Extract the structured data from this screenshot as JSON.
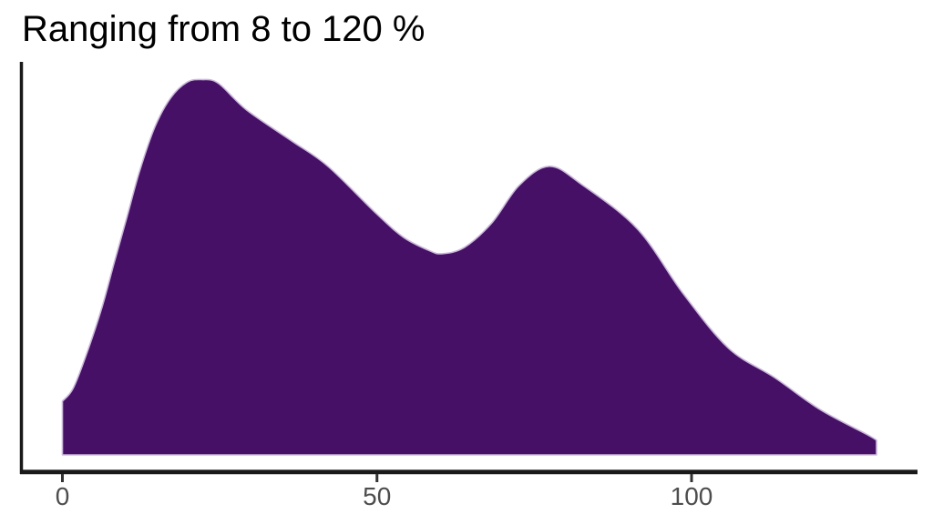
{
  "chart_data": {
    "type": "area",
    "subtype": "density",
    "title": "Ranging from 8 to 120 %",
    "xlabel": "",
    "ylabel": "",
    "x_ticks": [
      0,
      50,
      100
    ],
    "x_axis_range": [
      0,
      136
    ],
    "grid": false,
    "legend": "none",
    "peaks": [
      {
        "x": 22,
        "rel_height": 1.0
      },
      {
        "x": 77.5,
        "rel_height": 0.77
      }
    ],
    "valley": {
      "x": 60,
      "rel_height": 0.54
    },
    "curve": [
      {
        "x": 0.0,
        "y": 0.143
      },
      {
        "x": 1.7,
        "y": 0.177
      },
      {
        "x": 3.8,
        "y": 0.267
      },
      {
        "x": 6.2,
        "y": 0.388
      },
      {
        "x": 8.2,
        "y": 0.51
      },
      {
        "x": 10.2,
        "y": 0.63
      },
      {
        "x": 12.2,
        "y": 0.752
      },
      {
        "x": 14.7,
        "y": 0.874
      },
      {
        "x": 17.2,
        "y": 0.951
      },
      {
        "x": 19.8,
        "y": 0.993
      },
      {
        "x": 22.2,
        "y": 1.0
      },
      {
        "x": 24.8,
        "y": 0.99
      },
      {
        "x": 29.2,
        "y": 0.92
      },
      {
        "x": 36.4,
        "y": 0.837
      },
      {
        "x": 42.2,
        "y": 0.769
      },
      {
        "x": 49.9,
        "y": 0.643
      },
      {
        "x": 54.2,
        "y": 0.58
      },
      {
        "x": 58.1,
        "y": 0.546
      },
      {
        "x": 60.3,
        "y": 0.536
      },
      {
        "x": 63.9,
        "y": 0.553
      },
      {
        "x": 68.3,
        "y": 0.619
      },
      {
        "x": 72.6,
        "y": 0.718
      },
      {
        "x": 77.4,
        "y": 0.769
      },
      {
        "x": 82.5,
        "y": 0.721
      },
      {
        "x": 91.4,
        "y": 0.602
      },
      {
        "x": 98.7,
        "y": 0.429
      },
      {
        "x": 105.9,
        "y": 0.284
      },
      {
        "x": 113.2,
        "y": 0.206
      },
      {
        "x": 120.4,
        "y": 0.121
      },
      {
        "x": 127.7,
        "y": 0.056
      },
      {
        "x": 129.4,
        "y": 0.039
      }
    ],
    "colors": {
      "area_fill": "#451066",
      "area_outline": "#cbb7da",
      "axis_line": "#1a1a1a",
      "tick_mark": "#333333",
      "tick_label": "#4d4d4d",
      "title_text": "#000000",
      "background": "#ffffff"
    }
  }
}
